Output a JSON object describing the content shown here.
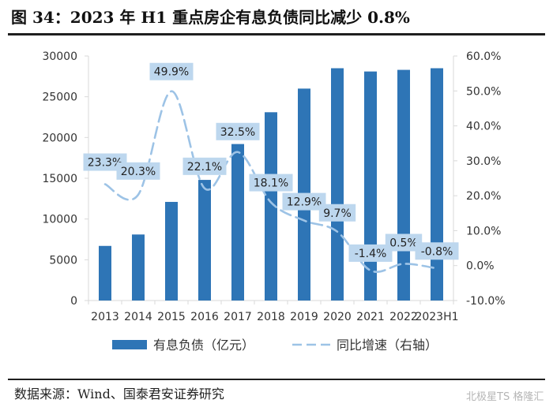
{
  "header": {
    "title": "图 34：2023 年 H1 重点房企有息负债同比减少 0.8%"
  },
  "footer": {
    "source": "数据来源：Wind、国泰君安证券研究",
    "watermark": "北极星TS 格隆汇"
  },
  "colors": {
    "bar": "#2e75b6",
    "line": "#9dc3e6",
    "label_bg": "#bdd7ee",
    "axis": "#d9d9d9"
  },
  "chart_data": {
    "type": "bar",
    "title": "",
    "categories": [
      "2013",
      "2014",
      "2015",
      "2016",
      "2017",
      "2018",
      "2019",
      "2020",
      "2021",
      "2022",
      "2023H1"
    ],
    "series": [
      {
        "name": "有息负债（亿元）",
        "type": "bar",
        "axis": "left",
        "values": [
          6700,
          8100,
          12100,
          14800,
          19200,
          23100,
          26000,
          28500,
          28100,
          28300,
          28500
        ]
      },
      {
        "name": "同比增速（右轴）",
        "type": "line",
        "style": "dashed",
        "axis": "right",
        "values": [
          23.3,
          20.3,
          49.9,
          22.1,
          32.5,
          18.1,
          12.9,
          9.7,
          -1.4,
          0.5,
          -0.8
        ],
        "labels": [
          "23.3%",
          "20.3%",
          "49.9%",
          "22.1%",
          "32.5%",
          "18.1%",
          "12.9%",
          "9.7%",
          "-1.4%",
          "0.5%",
          "-0.8%"
        ]
      }
    ],
    "y_left": {
      "min": 0,
      "max": 30000,
      "ticks": [
        "0",
        "5000",
        "10000",
        "15000",
        "20000",
        "25000",
        "30000"
      ]
    },
    "y_right": {
      "min": -10,
      "max": 60,
      "ticks": [
        "-10.0%",
        "0.0%",
        "10.0%",
        "20.0%",
        "30.0%",
        "40.0%",
        "50.0%",
        "60.0%"
      ]
    },
    "legend": {
      "position": "bottom"
    },
    "grid": false
  }
}
